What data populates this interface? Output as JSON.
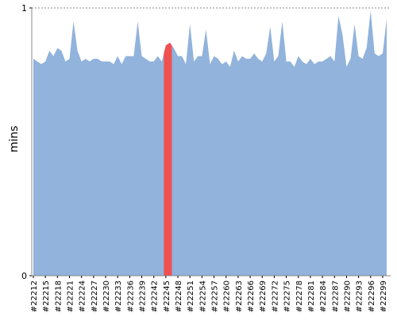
{
  "chart_data": {
    "type": "area",
    "y_label": "mins",
    "categories": [
      "#22212",
      null,
      null,
      "#22215",
      null,
      null,
      "#22218",
      null,
      null,
      "#22221",
      null,
      null,
      "#22224",
      null,
      null,
      "#22227",
      null,
      null,
      "#22230",
      null,
      null,
      "#22233",
      null,
      null,
      "#22236",
      null,
      null,
      "#22239",
      null,
      null,
      "#22242",
      null,
      null,
      "#22245",
      null,
      null,
      "#22248",
      null,
      null,
      "#22251",
      null,
      null,
      "#22254",
      null,
      null,
      "#22257",
      null,
      null,
      "#22260",
      null,
      null,
      "#22263",
      null,
      null,
      "#22266",
      null,
      null,
      "#22269",
      null,
      null,
      "#22272",
      null,
      null,
      "#22275",
      null,
      null,
      "#22278",
      null,
      null,
      "#22281",
      null,
      null,
      "#22284",
      null,
      null,
      "#22287",
      null,
      null,
      "#22290",
      null,
      null,
      "#22293",
      null,
      null,
      "#22296",
      null,
      null,
      "#22299",
      null
    ],
    "values": [
      0.81,
      0.8,
      0.79,
      0.8,
      0.84,
      0.82,
      0.85,
      0.84,
      0.8,
      0.81,
      0.95,
      0.84,
      0.8,
      0.81,
      0.8,
      0.81,
      0.81,
      0.8,
      0.8,
      0.8,
      0.79,
      0.82,
      0.79,
      0.82,
      0.82,
      0.82,
      0.95,
      0.82,
      0.81,
      0.8,
      0.8,
      0.82,
      0.8,
      0.86,
      0.87,
      0.85,
      0.82,
      0.82,
      0.79,
      0.94,
      0.8,
      0.82,
      0.82,
      0.92,
      0.79,
      0.82,
      0.81,
      0.79,
      0.8,
      0.78,
      0.84,
      0.8,
      0.82,
      0.81,
      0.81,
      0.83,
      0.81,
      0.8,
      0.83,
      0.93,
      0.8,
      0.82,
      0.95,
      0.8,
      0.8,
      0.78,
      0.82,
      0.8,
      0.79,
      0.81,
      0.79,
      0.8,
      0.8,
      0.81,
      0.82,
      0.8,
      0.97,
      0.9,
      0.78,
      0.81,
      0.94,
      0.82,
      0.81,
      0.85,
      0.99,
      0.83,
      0.82,
      0.83,
      0.96
    ],
    "color": "#91b3dc",
    "highlight": {
      "indices": [
        33,
        34
      ],
      "color": "#f05050"
    },
    "ylim": [
      0,
      1
    ],
    "yticks": [
      0,
      1
    ]
  }
}
